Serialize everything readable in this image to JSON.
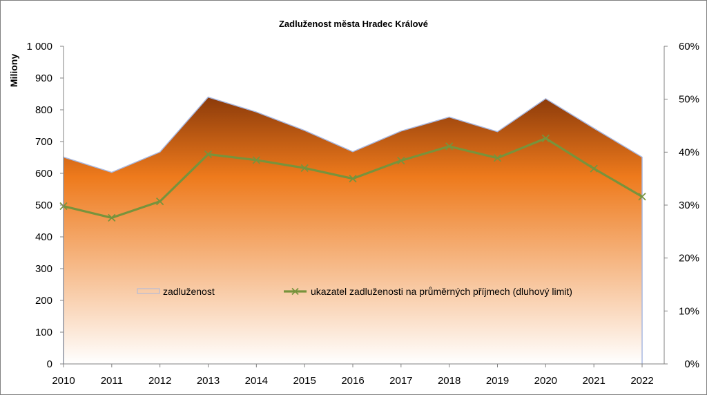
{
  "chart_data": {
    "type": "area+line",
    "title": "Zadluženost města Hradec Králové",
    "ylabel": "Miliony",
    "ylabel_right": "",
    "xlabel": "",
    "categories": [
      "2010",
      "2011",
      "2012",
      "2013",
      "2014",
      "2015",
      "2016",
      "2017",
      "2018",
      "2019",
      "2020",
      "2021",
      "2022"
    ],
    "y_ticks": [
      "0",
      "100",
      "200",
      "300",
      "400",
      "500",
      "600",
      "700",
      "800",
      "900",
      "1 000"
    ],
    "y2_ticks": [
      "0%",
      "10%",
      "20%",
      "30%",
      "40%",
      "50%",
      "60%"
    ],
    "ylim": [
      0,
      1000
    ],
    "y2lim": [
      0,
      0.6
    ],
    "grid": false,
    "legend_placement": "inside-middle",
    "series": [
      {
        "name": "zadluženost",
        "type": "area",
        "axis": "left",
        "values": [
          651,
          603,
          667,
          840,
          793,
          735,
          668,
          733,
          777,
          731,
          835,
          742,
          651
        ],
        "colors": {
          "top": "#8b3a0a",
          "mid": "#ee7a1c",
          "bottom": "#ffffff",
          "edge": "#a8b8e0"
        }
      },
      {
        "name": "ukazatel zadluženosti na průměrných příjmech (dluhový limit)",
        "type": "line",
        "axis": "right",
        "values": [
          0.298,
          0.276,
          0.307,
          0.396,
          0.385,
          0.37,
          0.35,
          0.384,
          0.411,
          0.389,
          0.426,
          0.369,
          0.316
        ],
        "color": "#77933c",
        "marker": "x"
      }
    ]
  }
}
